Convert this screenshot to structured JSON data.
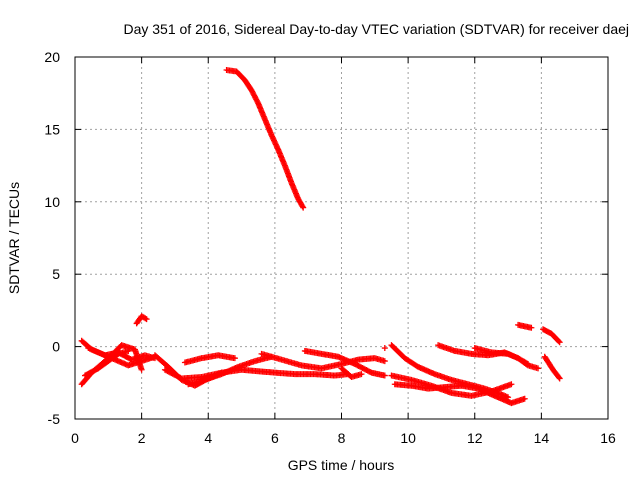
{
  "chart_data": {
    "type": "scatter",
    "title": "Day 351 of 2016, Sidereal Day-to-day VTEC variation (SDTVAR) for receiver daej",
    "xlabel": "GPS time / hours",
    "ylabel": "SDTVAR / TECUs",
    "xlim": [
      0,
      16
    ],
    "ylim": [
      -5,
      20
    ],
    "xticks": [
      0,
      2,
      4,
      6,
      8,
      10,
      12,
      14,
      16
    ],
    "yticks": [
      -5,
      0,
      5,
      10,
      15,
      20
    ],
    "xtick_labels": [
      "0",
      "2",
      "4",
      "6",
      "8",
      "10",
      "12",
      "14",
      "16"
    ],
    "ytick_labels": [
      "-5",
      "0",
      "5",
      "10",
      "15",
      "20"
    ],
    "grid": true,
    "marker": "+",
    "color": "#ff0000",
    "series": [
      {
        "name": "arc-high",
        "x": [
          4.55,
          4.85,
          5.1,
          5.3,
          5.5,
          5.7,
          5.9,
          6.1,
          6.3,
          6.5,
          6.7,
          6.85
        ],
        "y": [
          19.1,
          19.0,
          18.4,
          17.7,
          16.8,
          15.7,
          14.6,
          13.6,
          12.5,
          11.3,
          10.2,
          9.6
        ]
      },
      {
        "name": "arc-a",
        "x": [
          0.2,
          0.5,
          0.9,
          1.3,
          1.7,
          2.1,
          2.4
        ],
        "y": [
          0.4,
          -0.2,
          -0.6,
          -0.4,
          -0.9,
          -0.6,
          -0.8
        ]
      },
      {
        "name": "arc-b",
        "x": [
          0.2,
          0.5,
          0.8,
          1.1,
          1.4,
          1.8,
          2.0
        ],
        "y": [
          -2.6,
          -1.8,
          -1.2,
          -0.6,
          0.1,
          -0.2,
          -1.6
        ]
      },
      {
        "name": "arc-c",
        "x": [
          0.3,
          0.7,
          1.0,
          1.3,
          1.6
        ],
        "y": [
          -2.0,
          -1.5,
          -1.0,
          -0.5,
          -0.3
        ]
      },
      {
        "name": "arc-d",
        "x": [
          0.4,
          0.8,
          1.2,
          1.6,
          2.0,
          2.4
        ],
        "y": [
          -0.1,
          -0.5,
          -0.9,
          -1.3,
          -1.0,
          -0.7
        ]
      },
      {
        "name": "arc-e",
        "x": [
          1.85,
          2.0,
          2.15
        ],
        "y": [
          1.6,
          2.1,
          1.9
        ]
      },
      {
        "name": "arc-f",
        "x": [
          2.4,
          2.8,
          3.2,
          3.6,
          4.0,
          4.4
        ],
        "y": [
          -0.6,
          -1.4,
          -2.3,
          -2.7,
          -2.2,
          -1.8
        ]
      },
      {
        "name": "arc-g",
        "x": [
          2.7,
          3.2,
          3.8,
          4.4,
          5.0,
          5.5,
          6.0,
          6.6,
          7.2,
          7.8,
          8.2
        ],
        "y": [
          -1.6,
          -2.2,
          -2.1,
          -1.8,
          -1.6,
          -1.7,
          -1.8,
          -1.9,
          -1.9,
          -2.0,
          -1.9
        ]
      },
      {
        "name": "arc-h",
        "x": [
          3.4,
          3.9,
          4.4,
          4.9,
          5.4,
          5.9
        ],
        "y": [
          -2.6,
          -2.3,
          -1.9,
          -1.4,
          -1.0,
          -0.7
        ]
      },
      {
        "name": "arc-i",
        "x": [
          3.3,
          3.8,
          4.3,
          4.8
        ],
        "y": [
          -1.1,
          -0.8,
          -0.6,
          -0.8
        ]
      },
      {
        "name": "arc-j",
        "x": [
          5.6,
          6.2,
          6.8,
          7.4,
          8.0,
          8.5,
          9.0,
          9.3
        ],
        "y": [
          -0.5,
          -0.9,
          -1.3,
          -1.5,
          -1.2,
          -0.9,
          -0.8,
          -1.0
        ]
      },
      {
        "name": "arc-k",
        "x": [
          6.9,
          7.4,
          7.9,
          8.4,
          8.9,
          9.3
        ],
        "y": [
          -0.3,
          -0.5,
          -0.7,
          -1.2,
          -1.8,
          -2.0
        ]
      },
      {
        "name": "arc-l",
        "x": [
          8.0,
          8.3,
          8.6
        ],
        "y": [
          -1.5,
          -2.1,
          -1.9
        ]
      },
      {
        "name": "arc-m",
        "x": [
          9.3
        ],
        "y": [
          -0.1
        ]
      },
      {
        "name": "arc-n",
        "x": [
          9.5,
          9.9,
          10.3,
          10.8,
          11.3,
          11.8,
          12.3,
          12.8,
          13.0
        ],
        "y": [
          0.1,
          -0.8,
          -1.4,
          -1.9,
          -2.3,
          -2.6,
          -2.9,
          -3.3,
          -3.5
        ]
      },
      {
        "name": "arc-o",
        "x": [
          9.5,
          10.1,
          10.7,
          11.3,
          11.9,
          12.5,
          13.1
        ],
        "y": [
          -2.0,
          -2.3,
          -2.7,
          -3.2,
          -3.4,
          -3.1,
          -2.6
        ]
      },
      {
        "name": "arc-p",
        "x": [
          9.6,
          10.1,
          10.6,
          11.1,
          11.6,
          12.1,
          12.6,
          13.1,
          13.5
        ],
        "y": [
          -2.6,
          -2.7,
          -2.9,
          -2.8,
          -2.7,
          -2.9,
          -3.4,
          -3.9,
          -3.6
        ]
      },
      {
        "name": "arc-q",
        "x": [
          10.9,
          11.4,
          11.9,
          12.4,
          12.9,
          13.3,
          13.6
        ],
        "y": [
          0.1,
          -0.3,
          -0.5,
          -0.6,
          -0.4,
          -0.8,
          -1.2
        ]
      },
      {
        "name": "arc-r",
        "x": [
          12.0,
          12.5,
          13.0,
          13.3,
          13.6,
          13.9
        ],
        "y": [
          -0.1,
          -0.4,
          -0.5,
          -0.8,
          -1.3,
          -1.5
        ]
      },
      {
        "name": "arc-s",
        "x": [
          13.3,
          13.7
        ],
        "y": [
          1.5,
          1.3
        ]
      },
      {
        "name": "arc-t",
        "x": [
          14.05,
          14.3,
          14.55
        ],
        "y": [
          1.2,
          0.9,
          0.3
        ]
      },
      {
        "name": "arc-u",
        "x": [
          14.1,
          14.35,
          14.55
        ],
        "y": [
          -0.7,
          -1.6,
          -2.2
        ]
      }
    ]
  }
}
